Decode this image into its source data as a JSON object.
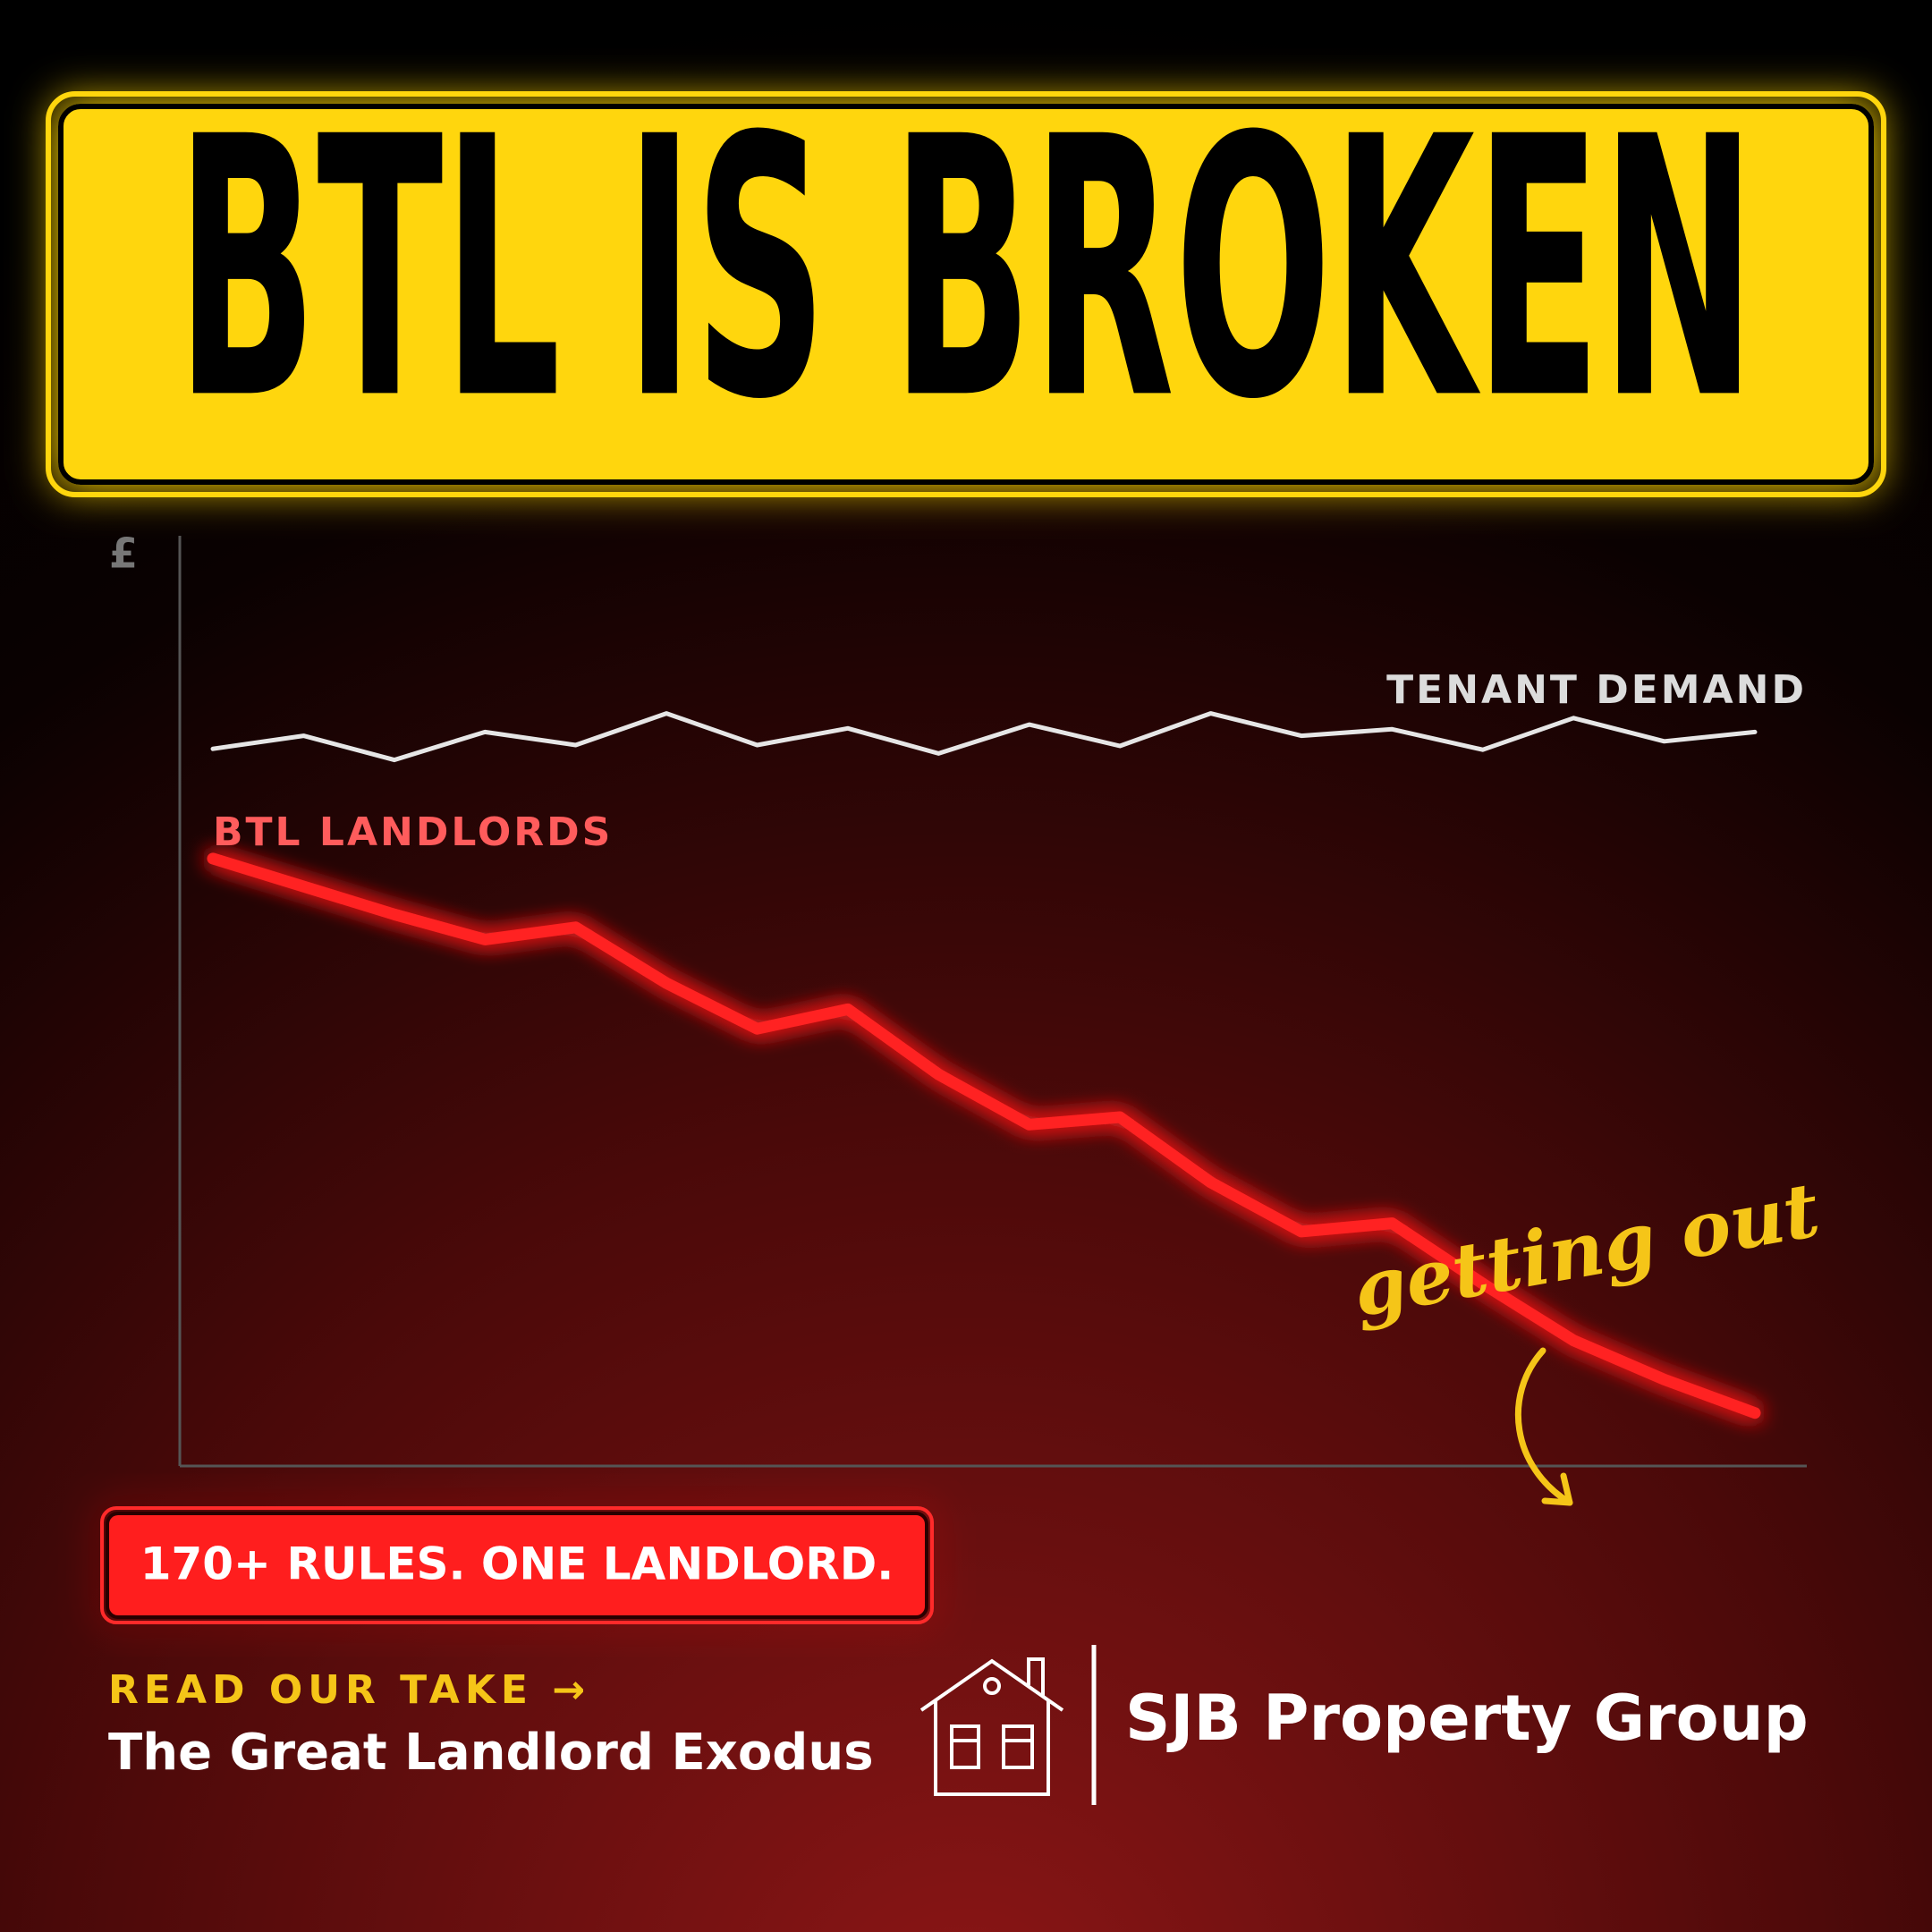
{
  "chart_data": {
    "type": "line",
    "title": "BTL IS BROKEN",
    "y_label": "£",
    "categories": [
      null,
      null,
      null,
      null,
      null,
      null,
      null,
      null,
      null,
      null,
      null,
      null,
      null,
      null,
      null,
      null,
      null,
      null
    ],
    "series": [
      {
        "name": "TENANT DEMAND",
        "color": "#e6e6e6",
        "values": [
          77.1,
          78.5,
          75.9,
          78.9,
          77.5,
          80.9,
          77.5,
          79.3,
          76.6,
          79.7,
          77.4,
          80.9,
          78.5,
          79.2,
          77.0,
          80.4,
          77.9,
          78.9
        ]
      },
      {
        "name": "BTL LANDLORDS",
        "color": "#ff2222",
        "values": [
          65.3,
          62.3,
          59.3,
          56.6,
          57.9,
          51.9,
          47.0,
          49.1,
          42.1,
          36.7,
          37.5,
          30.5,
          25.2,
          26.1,
          19.6,
          13.5,
          9.3,
          5.7
        ]
      }
    ],
    "ylim": [
      0,
      100
    ],
    "annotation": "getting out",
    "badge": "170+ RULES. ONE LANDLORD.",
    "link_label": "READ OUR TAKE →",
    "link_title": "The Great Landlord Exodus",
    "brand": "SJB Property Group"
  }
}
